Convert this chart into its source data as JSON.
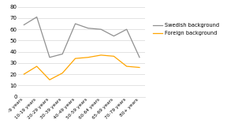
{
  "categories": [
    "-9 years",
    "10-19 years",
    "20-29 years",
    "30-39 years",
    "40-49 years",
    "50-59 years",
    "60-64 years",
    "65-69 years",
    "70-79 years",
    "80+ years"
  ],
  "swedish": [
    64,
    71,
    35,
    38,
    65,
    61,
    60,
    54,
    60,
    35
  ],
  "foreign": [
    20,
    27,
    15,
    21,
    34,
    35,
    37,
    36,
    27,
    26
  ],
  "swedish_color": "#909090",
  "foreign_color": "#FFA500",
  "ylim": [
    0,
    80
  ],
  "yticks": [
    0,
    10,
    20,
    30,
    40,
    50,
    60,
    70,
    80
  ],
  "legend_swedish": "Swedish background",
  "legend_foreign": "Foreign background",
  "background_color": "#ffffff",
  "grid_color": "#d8d8d8",
  "label_fontsize": 4.2,
  "ytick_fontsize": 5.0,
  "legend_fontsize": 4.8
}
